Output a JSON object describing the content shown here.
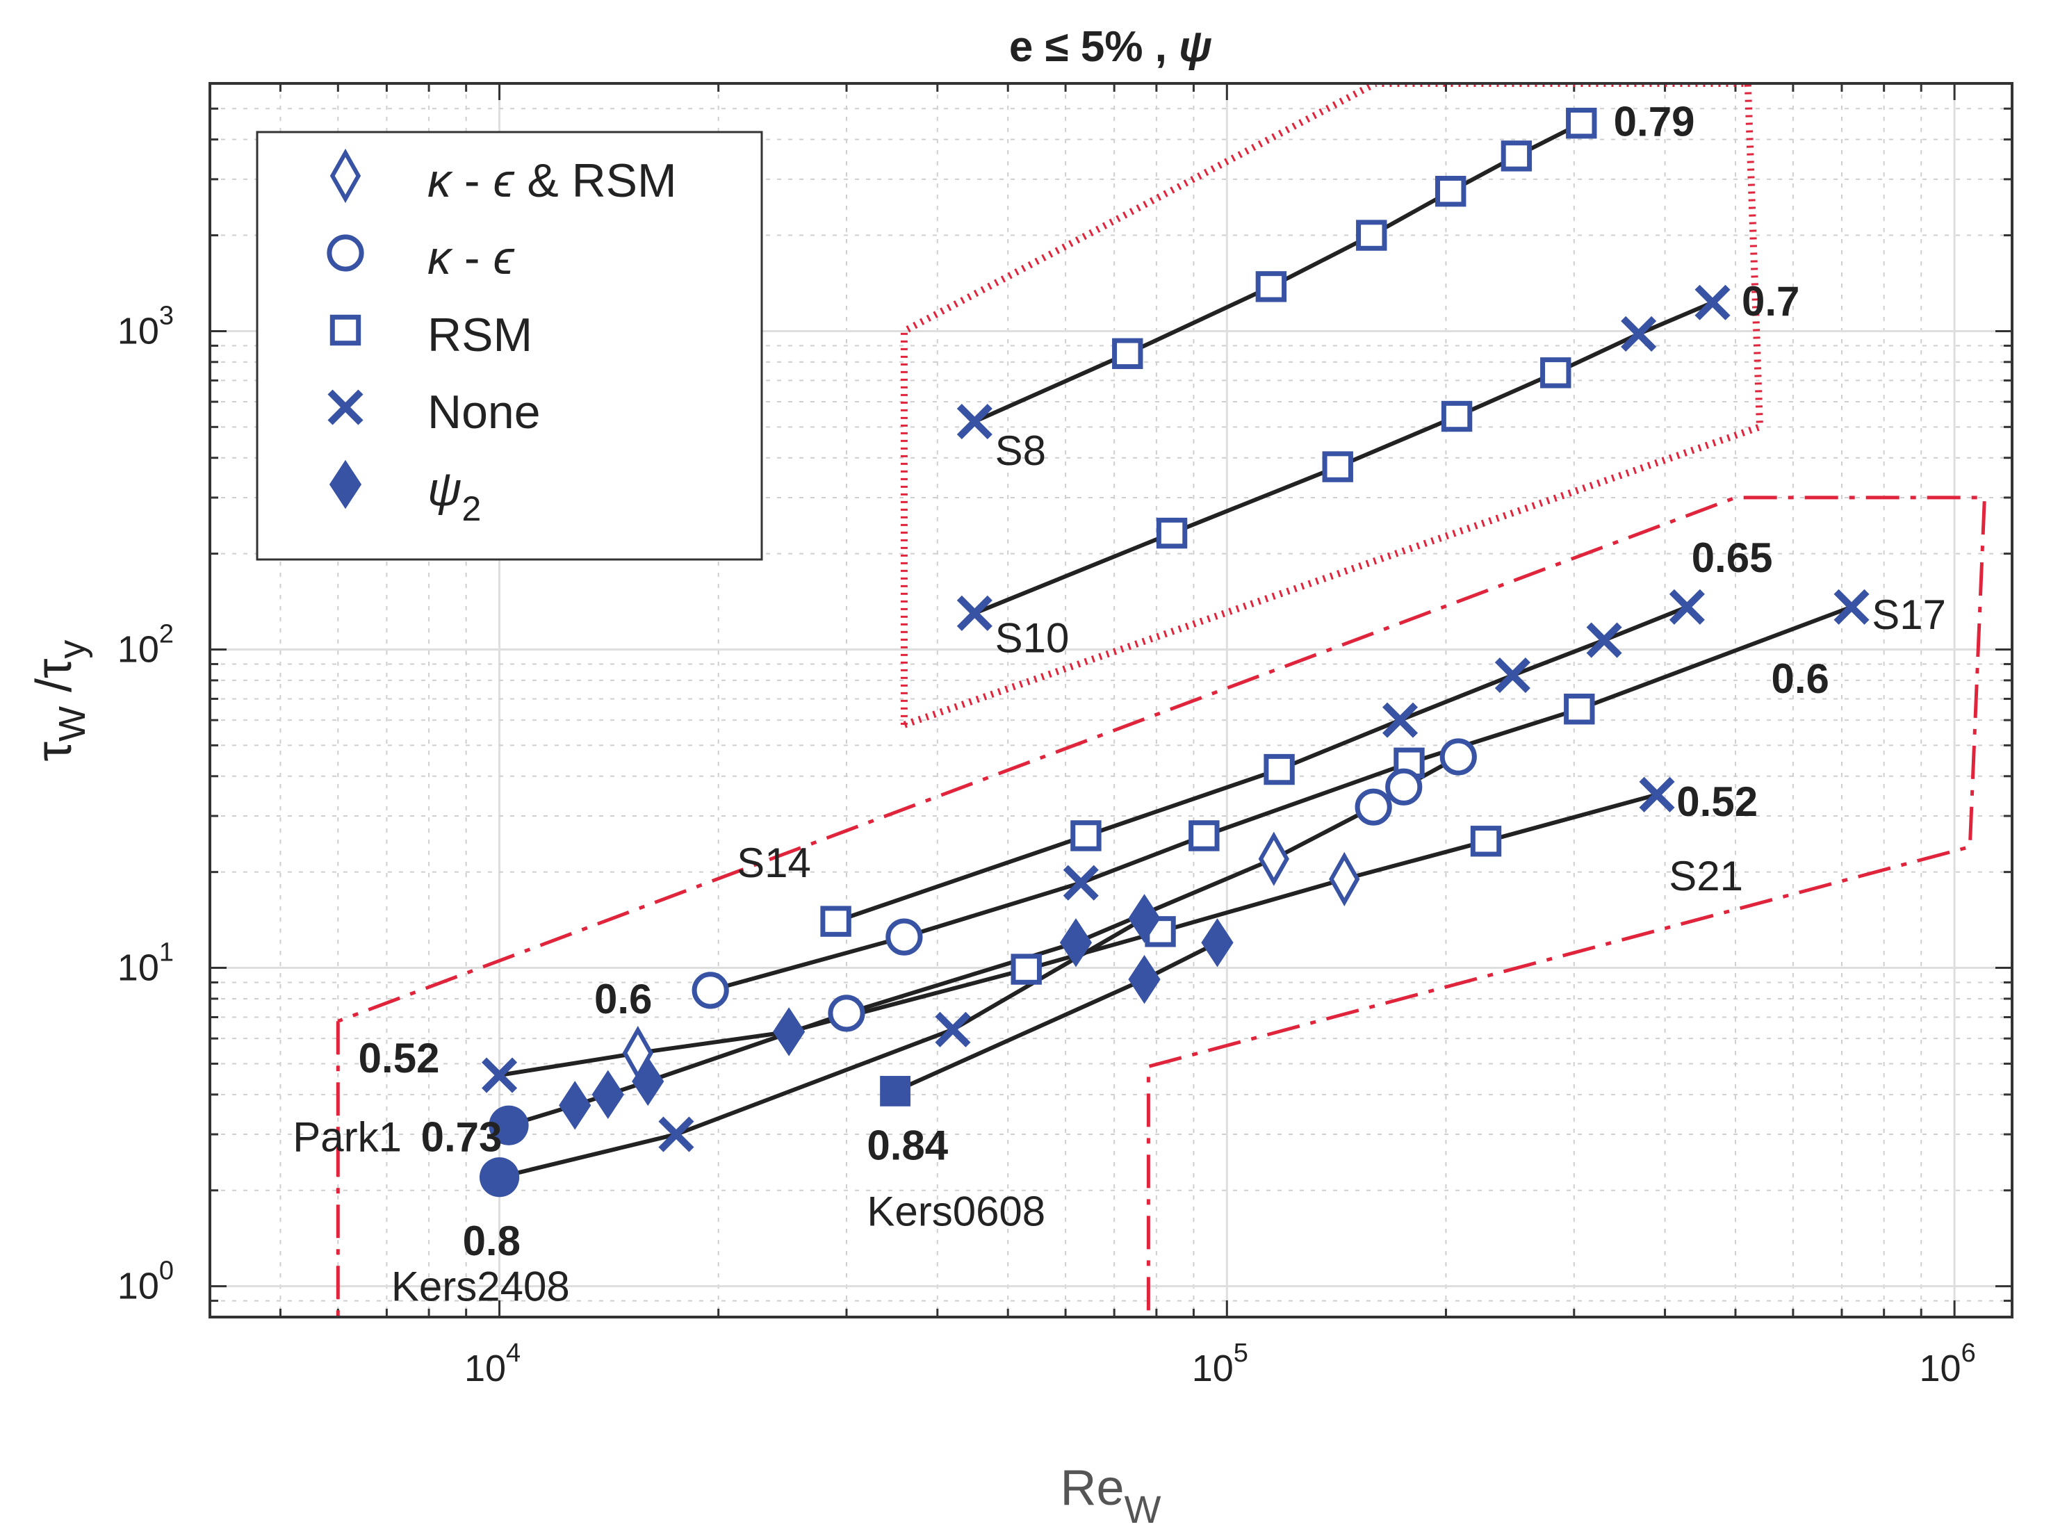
{
  "chart_data": {
    "type": "scatter",
    "title": "e ≤ 5% , ψ",
    "xlabel": {
      "base": "Re",
      "sub": "W"
    },
    "ylabel": {
      "num": "τ",
      "num_sub": "W",
      "den": "τ",
      "den_sub": "y"
    },
    "xscale": "log",
    "yscale": "log",
    "xlim": [
      4000,
      1200000
    ],
    "ylim": [
      0.8,
      6000
    ],
    "grid": true,
    "x_ticks": [
      {
        "value": 10000,
        "base": "10",
        "exp": "4"
      },
      {
        "value": 100000,
        "base": "10",
        "exp": "5"
      },
      {
        "value": 1000000,
        "base": "10",
        "exp": "6"
      }
    ],
    "y_ticks": [
      {
        "value": 1,
        "base": "10",
        "exp": "0"
      },
      {
        "value": 10,
        "base": "10",
        "exp": "1"
      },
      {
        "value": 100,
        "base": "10",
        "exp": "2"
      },
      {
        "value": 1000,
        "base": "10",
        "exp": "3"
      }
    ],
    "legend": {
      "position": "top-left",
      "entries": [
        {
          "marker": "diamond-open",
          "label_parts": [
            "κ",
            " - ",
            "ϵ",
            " & RSM"
          ]
        },
        {
          "marker": "circle-open",
          "label_parts": [
            "κ",
            " - ",
            "ϵ"
          ]
        },
        {
          "marker": "square-open",
          "label": "RSM"
        },
        {
          "marker": "x",
          "label": "None"
        },
        {
          "marker": "diamond-filled",
          "label": "ψ",
          "label_sub": "2"
        }
      ]
    },
    "colors": {
      "marker": "#3852a4",
      "line": "#222222",
      "region": "#e0243c"
    },
    "series": [
      {
        "name": "S8",
        "points": [
          {
            "x": 45000,
            "y": 520,
            "m": "x"
          },
          {
            "x": 73000,
            "y": 850,
            "m": "square-open"
          },
          {
            "x": 115000,
            "y": 1380,
            "m": "square-open"
          },
          {
            "x": 158000,
            "y": 2000,
            "m": "square-open"
          },
          {
            "x": 203000,
            "y": 2750,
            "m": "square-open"
          },
          {
            "x": 250000,
            "y": 3550,
            "m": "square-open"
          },
          {
            "x": 307000,
            "y": 4500,
            "m": "square-open"
          }
        ]
      },
      {
        "name": "S10",
        "points": [
          {
            "x": 45000,
            "y": 130,
            "m": "x"
          },
          {
            "x": 84000,
            "y": 232,
            "m": "square-open"
          },
          {
            "x": 142000,
            "y": 375,
            "m": "square-open"
          },
          {
            "x": 207000,
            "y": 540,
            "m": "square-open"
          },
          {
            "x": 283000,
            "y": 740,
            "m": "square-open"
          },
          {
            "x": 368000,
            "y": 980,
            "m": "x"
          },
          {
            "x": 465000,
            "y": 1230,
            "m": "x"
          }
        ]
      },
      {
        "name": "S14",
        "points": [
          {
            "x": 29000,
            "y": 14,
            "m": "square-open"
          },
          {
            "x": 64000,
            "y": 26,
            "m": "square-open"
          },
          {
            "x": 118000,
            "y": 42,
            "m": "square-open"
          },
          {
            "x": 173000,
            "y": 60,
            "m": "x"
          },
          {
            "x": 247000,
            "y": 83,
            "m": "x"
          },
          {
            "x": 330000,
            "y": 107,
            "m": "x"
          },
          {
            "x": 429000,
            "y": 136,
            "m": "x"
          }
        ]
      },
      {
        "name": "S17",
        "points": [
          {
            "x": 19500,
            "y": 8.5,
            "m": "circle-open"
          },
          {
            "x": 36000,
            "y": 12.5,
            "m": "circle-open"
          },
          {
            "x": 63000,
            "y": 18.5,
            "m": "x"
          },
          {
            "x": 93000,
            "y": 26,
            "m": "square-open"
          },
          {
            "x": 178000,
            "y": 44,
            "m": "square-open"
          },
          {
            "x": 305000,
            "y": 65,
            "m": "square-open"
          },
          {
            "x": 722000,
            "y": 136,
            "m": "x"
          }
        ]
      },
      {
        "name": "S21",
        "points": [
          {
            "x": 10000,
            "y": 4.6,
            "m": "x"
          },
          {
            "x": 15500,
            "y": 5.4,
            "m": "diamond-open"
          },
          {
            "x": 25000,
            "y": 6.3,
            "m": "diamond-filled"
          },
          {
            "x": 53000,
            "y": 9.9,
            "m": "square-open"
          },
          {
            "x": 81000,
            "y": 13,
            "m": "square-open"
          },
          {
            "x": 145000,
            "y": 19,
            "m": "diamond-open"
          },
          {
            "x": 227000,
            "y": 25,
            "m": "square-open"
          },
          {
            "x": 390000,
            "y": 35,
            "m": "x"
          }
        ]
      },
      {
        "name": "Park1",
        "points": [
          {
            "x": 10300,
            "y": 3.2,
            "m": "circle-filled"
          },
          {
            "x": 12700,
            "y": 3.7,
            "m": "diamond-filled"
          },
          {
            "x": 14100,
            "y": 4.0,
            "m": "diamond-filled"
          },
          {
            "x": 16000,
            "y": 4.4,
            "m": "diamond-filled"
          },
          {
            "x": 30000,
            "y": 7.2,
            "m": "circle-open"
          },
          {
            "x": 62000,
            "y": 12,
            "m": "diamond-filled"
          },
          {
            "x": 116000,
            "y": 22,
            "m": "diamond-open"
          },
          {
            "x": 159000,
            "y": 32,
            "m": "circle-open"
          },
          {
            "x": 175000,
            "y": 37,
            "m": "circle-open"
          },
          {
            "x": 208000,
            "y": 46,
            "m": "circle-open"
          }
        ]
      },
      {
        "name": "Kers2408",
        "points": [
          {
            "x": 10000,
            "y": 2.2,
            "m": "circle-filled"
          },
          {
            "x": 17500,
            "y": 3.0,
            "m": "x"
          },
          {
            "x": 42000,
            "y": 6.4,
            "m": "x"
          },
          {
            "x": 77000,
            "y": 14.3,
            "m": "diamond-filled"
          }
        ]
      },
      {
        "name": "Kers0608",
        "points": [
          {
            "x": 35000,
            "y": 4.1,
            "m": "square-filled"
          },
          {
            "x": 77000,
            "y": 9.2,
            "m": "diamond-filled"
          },
          {
            "x": 97000,
            "y": 12,
            "m": "diamond-filled"
          }
        ]
      }
    ],
    "annotations": [
      {
        "text": "0.79",
        "x": 340000,
        "y": 4100,
        "style": "bold"
      },
      {
        "text": "0.7",
        "x": 510000,
        "y": 1120,
        "style": "bold"
      },
      {
        "text": "S8",
        "x": 48000,
        "y": 380,
        "style": "plain"
      },
      {
        "text": "S10",
        "x": 48000,
        "y": 98,
        "style": "plain"
      },
      {
        "text": "0.65",
        "x": 435000,
        "y": 175,
        "style": "bold"
      },
      {
        "text": "S17",
        "x": 770000,
        "y": 116,
        "style": "plain"
      },
      {
        "text": "0.6",
        "x": 560000,
        "y": 73,
        "style": "bold"
      },
      {
        "text": "0.52",
        "x": 415000,
        "y": 30,
        "style": "bold"
      },
      {
        "text": "S21",
        "x": 405000,
        "y": 17.5,
        "style": "plain"
      },
      {
        "text": "S14",
        "x": 21200,
        "y": 19.3,
        "style": "plain"
      },
      {
        "text": "0.6",
        "x": 13500,
        "y": 7.2,
        "style": "bold"
      },
      {
        "text": "0.52",
        "x": 6400,
        "y": 4.7,
        "style": "bold"
      },
      {
        "text": "Park1",
        "x": 5200,
        "y": 2.65,
        "style": "plain"
      },
      {
        "text": "0.73",
        "x": 7800,
        "y": 2.65,
        "style": "bold"
      },
      {
        "text": "0.84",
        "x": 32000,
        "y": 2.5,
        "style": "bold"
      },
      {
        "text": "Kers0608",
        "x": 32000,
        "y": 1.55,
        "style": "plain"
      },
      {
        "text": "0.8",
        "x": 8900,
        "y": 1.25,
        "style": "bold"
      },
      {
        "text": "Kers2408",
        "x": 7100,
        "y": 0.9,
        "style": "plain"
      }
    ],
    "regions": [
      {
        "style": "dotted",
        "points": [
          [
            36000,
            58
          ],
          [
            36000,
            1000
          ],
          [
            160000,
            6000
          ],
          [
            520000,
            6000
          ],
          [
            540000,
            500
          ],
          [
            36000,
            58
          ]
        ]
      },
      {
        "style": "dash-dot",
        "points": [
          [
            6000,
            6.8
          ],
          [
            6000,
            0.67
          ],
          [
            78000,
            0.67
          ],
          [
            78000,
            4.9
          ],
          [
            1050000,
            24
          ],
          [
            1100000,
            300
          ],
          [
            500000,
            300
          ],
          [
            6000,
            6.8
          ]
        ]
      }
    ]
  }
}
